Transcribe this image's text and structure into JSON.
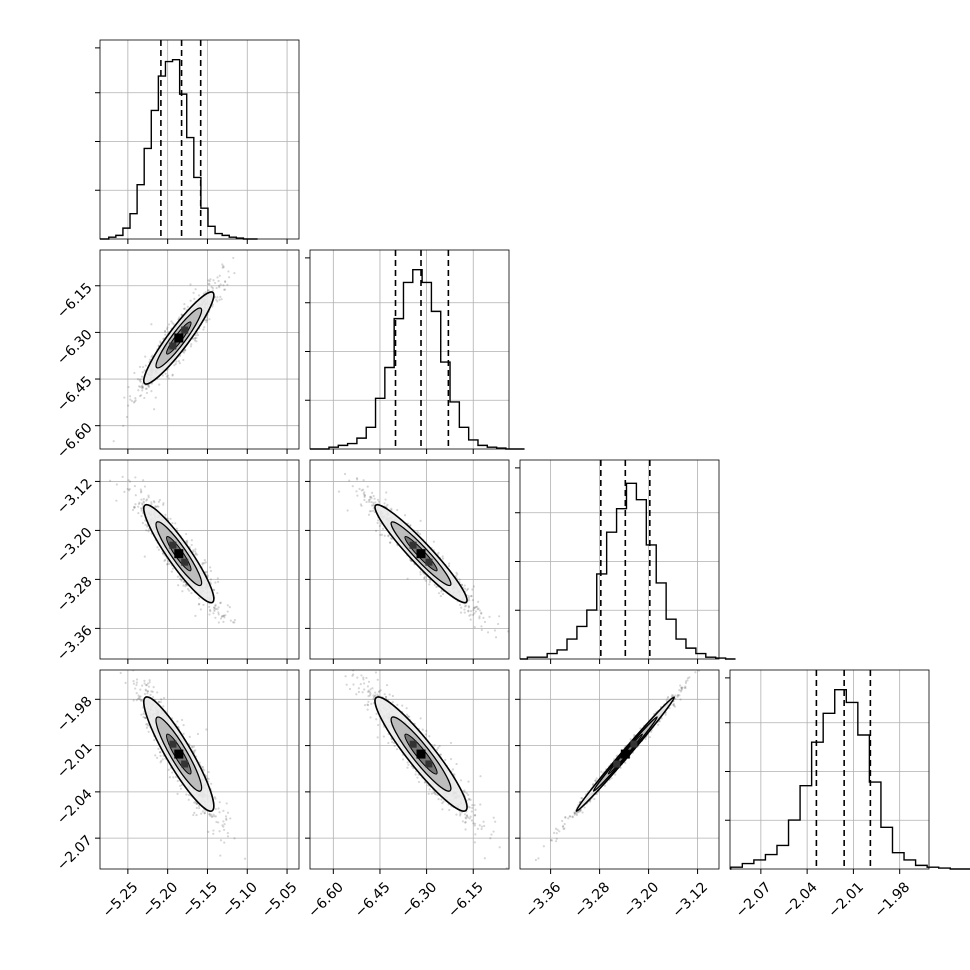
{
  "chart_data": {
    "type": "corner",
    "grid": true,
    "parameters": [
      {
        "range": [
          -5.285,
          -5.035
        ],
        "ticks": [
          -5.25,
          -5.2,
          -5.15,
          -5.1,
          -5.05
        ],
        "tick_labels": [
          "−5.25",
          "−5.20",
          "−5.15",
          "−5.10",
          "−5.05"
        ],
        "mean": -5.186,
        "std": 0.022,
        "quantiles": [
          -5.2085,
          -5.1825,
          -5.1585
        ]
      },
      {
        "range": [
          -6.675,
          -6.035
        ],
        "ticks": [
          -6.6,
          -6.45,
          -6.3,
          -6.15
        ],
        "tick_labels": [
          "−6.60",
          "−6.45",
          "−6.30",
          "−6.15"
        ],
        "mean": -6.318,
        "std": 0.074,
        "quantiles": [
          -6.4,
          -6.318,
          -6.23
        ]
      },
      {
        "range": [
          -3.41,
          -3.085
        ],
        "ticks": [
          -3.36,
          -3.28,
          -3.2,
          -3.12
        ],
        "tick_labels": [
          "−3.36",
          "−3.28",
          "−3.20",
          "−3.12"
        ],
        "mean": -3.238,
        "std": 0.04,
        "quantiles": [
          -3.278,
          -3.238,
          -3.198
        ]
      },
      {
        "range": [
          -2.09,
          -1.961
        ],
        "ticks": [
          -2.07,
          -2.04,
          -2.01,
          -1.98
        ],
        "tick_labels": [
          "−2.07",
          "−2.04",
          "−2.01",
          "−1.98"
        ],
        "mean": -2.0155,
        "std": 0.0185,
        "quantiles": [
          -2.034,
          -2.016,
          -1.999
        ]
      }
    ],
    "histograms": [
      {
        "param": 0,
        "normalized_counts": [
          0.01,
          0.02,
          0.06,
          0.14,
          0.3,
          0.5,
          0.71,
          0.9,
          0.98,
          0.99,
          0.8,
          0.56,
          0.34,
          0.17,
          0.07,
          0.03,
          0.02,
          0.01,
          0.005,
          0,
          0
        ]
      },
      {
        "param": 1,
        "normalized_counts": [
          0.01,
          0.02,
          0.03,
          0.06,
          0.12,
          0.28,
          0.45,
          0.72,
          0.92,
          0.99,
          0.92,
          0.76,
          0.48,
          0.26,
          0.12,
          0.05,
          0.02,
          0.01,
          0.005,
          0,
          0
        ]
      },
      {
        "param": 2,
        "normalized_counts": [
          0.01,
          0.01,
          0.03,
          0.05,
          0.11,
          0.18,
          0.27,
          0.47,
          0.7,
          0.83,
          0.97,
          0.88,
          0.63,
          0.42,
          0.22,
          0.11,
          0.06,
          0.03,
          0.01,
          0.005,
          0
        ]
      },
      {
        "param": 3,
        "normalized_counts": [
          0.01,
          0.03,
          0.05,
          0.08,
          0.13,
          0.27,
          0.46,
          0.7,
          0.86,
          0.99,
          0.92,
          0.74,
          0.48,
          0.23,
          0.09,
          0.05,
          0.02,
          0.01,
          0.005,
          0,
          0
        ]
      }
    ],
    "correlations": [
      {
        "x": 0,
        "y": 1,
        "rho": 0.93
      },
      {
        "x": 0,
        "y": 2,
        "rho": -0.92
      },
      {
        "x": 1,
        "y": 2,
        "rho": -0.95
      },
      {
        "x": 0,
        "y": 3,
        "rho": -0.91
      },
      {
        "x": 1,
        "y": 3,
        "rho": -0.93
      },
      {
        "x": 2,
        "y": 3,
        "rho": 0.995
      }
    ]
  }
}
